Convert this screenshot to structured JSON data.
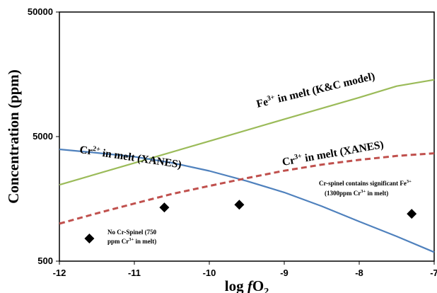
{
  "chart_data": {
    "type": "line",
    "xlabel_main": "log ",
    "xlabel_italic": "f",
    "xlabel_sym": "O",
    "xlabel_sub": "2",
    "ylabel": "Concentration (ppm)",
    "xlim": [
      -12,
      -7
    ],
    "ylim": [
      500,
      50000
    ],
    "yscale": "log",
    "grid": false,
    "x_ticks": [
      {
        "value": -12,
        "label": "-12"
      },
      {
        "value": -11,
        "label": "-11"
      },
      {
        "value": -10,
        "label": "-10"
      },
      {
        "value": -9,
        "label": "-9"
      },
      {
        "value": -8,
        "label": "-8"
      },
      {
        "value": -7,
        "label": "-7"
      }
    ],
    "y_ticks": [
      {
        "value": 500,
        "label": "500"
      },
      {
        "value": 5000,
        "label": "5000"
      },
      {
        "value": 50000,
        "label": "50000"
      }
    ],
    "series": [
      {
        "name": "Fe3+ in melt (K&C model)",
        "color": "#9bbb59",
        "dash": "solid",
        "x": [
          -12,
          -11,
          -10,
          -9,
          -8,
          -7.5,
          -7
        ],
        "y": [
          2050,
          3070,
          4600,
          6900,
          10300,
          12700,
          14300
        ]
      },
      {
        "name": "Cr2+ in melt (XANES)",
        "color": "#4f81bd",
        "dash": "solid",
        "x": [
          -12,
          -11.5,
          -11,
          -10.5,
          -10,
          -9.5,
          -9,
          -8.5,
          -8,
          -7.5,
          -7
        ],
        "y": [
          3950,
          3700,
          3450,
          3080,
          2650,
          2200,
          1780,
          1380,
          1040,
          790,
          590
        ]
      },
      {
        "name": "Cr3+ in melt (XANES)",
        "color": "#c0504d",
        "dash": "dashed",
        "x": [
          -12,
          -11.5,
          -11,
          -10.5,
          -10,
          -9.5,
          -9,
          -8.5,
          -8,
          -7.5,
          -7
        ],
        "y": [
          1000,
          1210,
          1450,
          1730,
          2010,
          2320,
          2660,
          2980,
          3250,
          3500,
          3670
        ]
      }
    ],
    "points": [
      {
        "x": -11.6,
        "y": 760
      },
      {
        "x": -10.6,
        "y": 1350
      },
      {
        "x": -9.6,
        "y": 1420
      },
      {
        "x": -7.3,
        "y": 1200
      }
    ],
    "annotations": {
      "fe3": {
        "pre": "Fe",
        "sup": "3+",
        "post": " in melt (K&C model)"
      },
      "cr2": {
        "pre": "Cr",
        "sup": "2+",
        "post": " in melt (XANES)"
      },
      "cr3": {
        "pre": "Cr",
        "sup": "3+",
        "post": " in melt (XANES)"
      },
      "no_spinel_line1": "No Cr-Spinel  (750",
      "no_spinel_line2_pre": "ppm Cr",
      "no_spinel_line2_sup": "3+",
      "no_spinel_line2_post": " in melt)",
      "spinel_line1_pre": "Cr-spinel contains significant Fe",
      "spinel_line1_sup": "3+",
      "spinel_line2_pre": "(1300ppm Cr",
      "spinel_line2_sup": "3+",
      "spinel_line2_post": " in melt)"
    }
  }
}
